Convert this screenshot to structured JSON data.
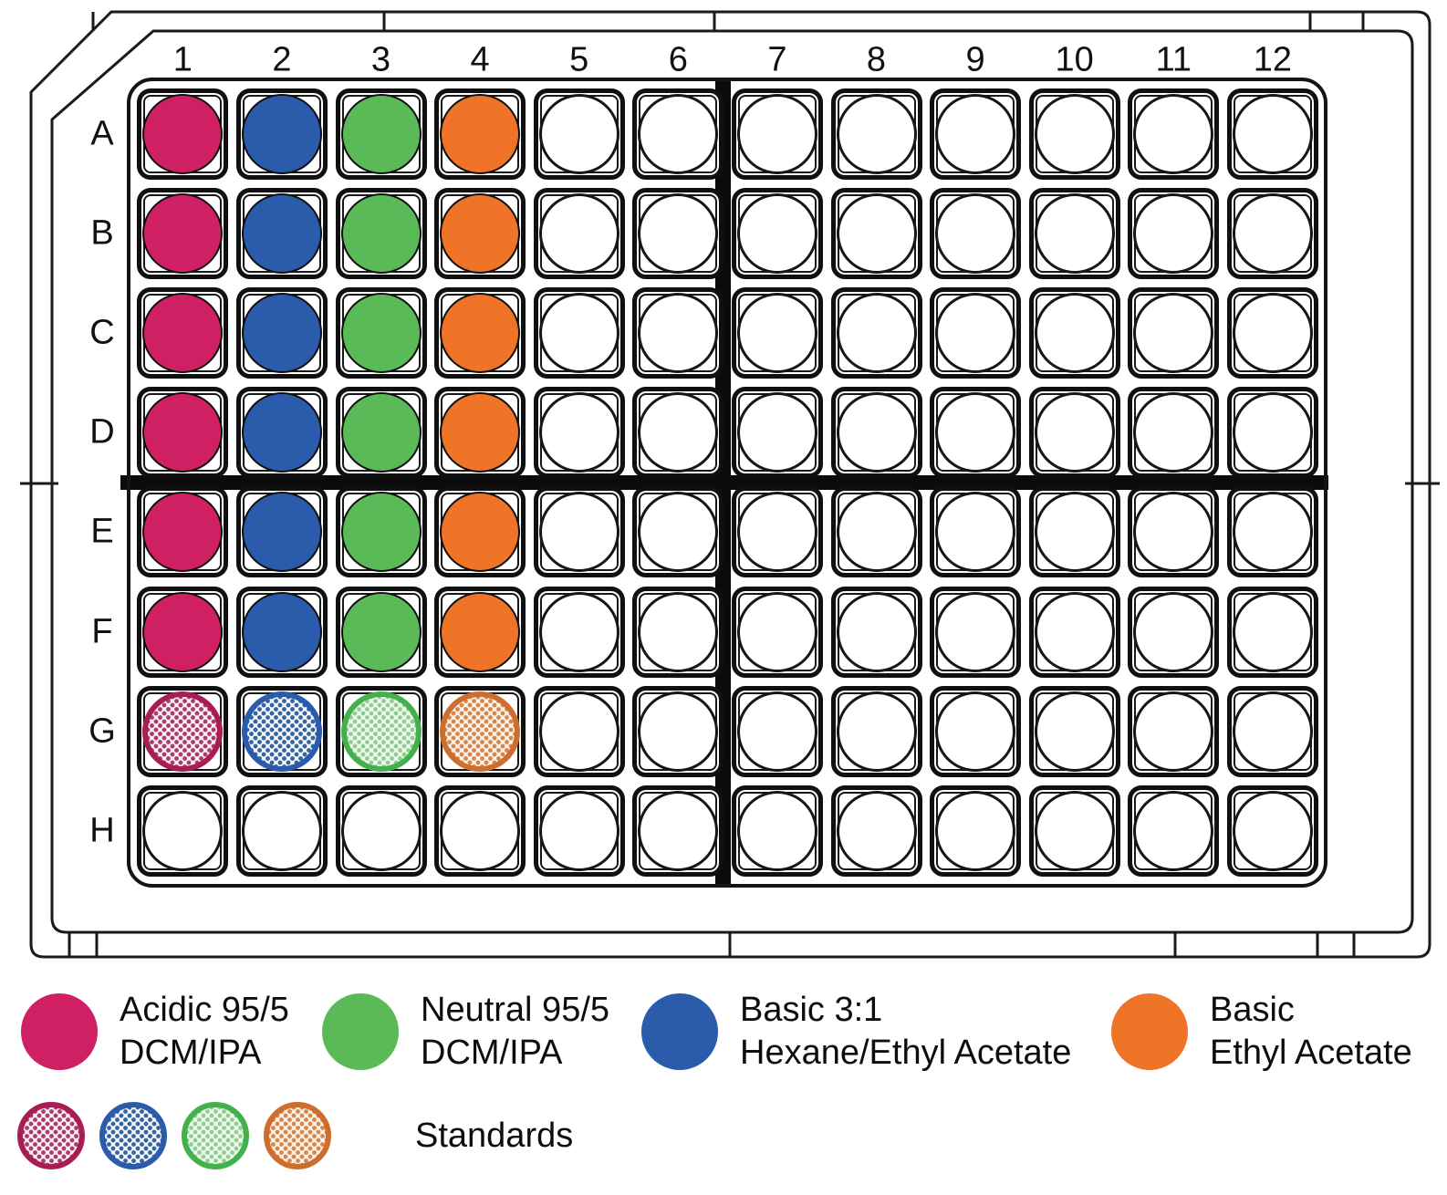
{
  "plate": {
    "column_labels": [
      "1",
      "2",
      "3",
      "4",
      "5",
      "6",
      "7",
      "8",
      "9",
      "10",
      "11",
      "12"
    ],
    "row_labels": [
      "A",
      "B",
      "C",
      "D",
      "E",
      "F",
      "G",
      "H"
    ],
    "wells": {
      "A1": "acidic",
      "B1": "acidic",
      "C1": "acidic",
      "D1": "acidic",
      "E1": "acidic",
      "F1": "acidic",
      "A2": "basic_hexane",
      "B2": "basic_hexane",
      "C2": "basic_hexane",
      "D2": "basic_hexane",
      "E2": "basic_hexane",
      "F2": "basic_hexane",
      "A3": "neutral",
      "B3": "neutral",
      "C3": "neutral",
      "D3": "neutral",
      "E3": "neutral",
      "F3": "neutral",
      "A4": "basic_ethyl_acetate",
      "B4": "basic_ethyl_acetate",
      "C4": "basic_ethyl_acetate",
      "D4": "basic_ethyl_acetate",
      "E4": "basic_ethyl_acetate",
      "F4": "basic_ethyl_acetate",
      "G1": "standard_acidic",
      "G2": "standard_basic_hexane",
      "G3": "standard_neutral",
      "G4": "standard_basic_ethyl_acetate"
    }
  },
  "groups": {
    "acidic": {
      "fill": "#CE2063"
    },
    "basic_hexane": {
      "fill": "#2B5BAB"
    },
    "neutral": {
      "fill": "#5ABA57"
    },
    "basic_ethyl_acetate": {
      "fill": "#EF7428"
    },
    "standard_acidic": {
      "ring": "#A81D54",
      "dot": "#A93C6E",
      "bg": "#FBEFF4"
    },
    "standard_basic_hexane": {
      "ring": "#2B5BAB",
      "dot": "#35639E",
      "bg": "#F3F7FB"
    },
    "standard_neutral": {
      "ring": "#42B14B",
      "dot": "#8FCE90",
      "bg": "#EFF8EF"
    },
    "standard_basic_ethyl_acetate": {
      "ring": "#CE6E2E",
      "dot": "#D4874C",
      "bg": "#FCF2E8"
    }
  },
  "legend": {
    "solvents": [
      {
        "id": "acidic",
        "line1": "Acidic 95/5",
        "line2": "DCM/IPA",
        "color": "#CE2063"
      },
      {
        "id": "neutral",
        "line1": "Neutral 95/5",
        "line2": "DCM/IPA",
        "color": "#5ABA57"
      },
      {
        "id": "basic_hexane",
        "line1": "Basic 3:1",
        "line2": "Hexane/Ethyl Acetate",
        "color": "#2B5BAB"
      },
      {
        "id": "basic_ethyl_acetate",
        "line1": "Basic",
        "line2": "Ethyl Acetate",
        "color": "#EF7428"
      }
    ],
    "standards": {
      "label": "Standards",
      "swatch_groups": [
        "standard_acidic",
        "standard_basic_hexane",
        "standard_neutral",
        "standard_basic_ethyl_acetate"
      ]
    }
  }
}
